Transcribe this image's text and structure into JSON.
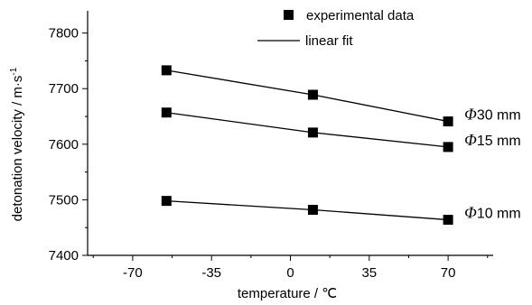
{
  "chart_data": {
    "type": "scatter",
    "xlabel": "temperature / ℃",
    "ylabel": "detonation velocity / m·s",
    "ylabel_superscript": "-1",
    "xlim": [
      -90,
      90
    ],
    "ylim": [
      7400,
      7840
    ],
    "x_ticks": [
      -70,
      -35,
      0,
      35,
      70
    ],
    "x_tick_labels": [
      "-70",
      "-35",
      "0",
      "35",
      "70"
    ],
    "y_ticks": [
      7400,
      7500,
      7600,
      7700,
      7800
    ],
    "y_tick_labels": [
      "7400",
      "7500",
      "7600",
      "7700",
      "7800"
    ],
    "legend": {
      "position": "top-right",
      "entries": [
        {
          "label": "experimental data",
          "marker": "square"
        },
        {
          "label": "linear fit",
          "marker": "line"
        }
      ]
    },
    "series": [
      {
        "name_symbol": "Φ",
        "name": "30 mm",
        "x": [
          -55,
          10,
          70
        ],
        "y": [
          7733,
          7689,
          7641
        ]
      },
      {
        "name_symbol": "Φ",
        "name": "15 mm",
        "x": [
          -55,
          10,
          70
        ],
        "y": [
          7657,
          7621,
          7595
        ]
      },
      {
        "name_symbol": "Φ",
        "name": "10 mm",
        "x": [
          -55,
          10,
          70
        ],
        "y": [
          7498,
          7482,
          7464
        ]
      }
    ],
    "colors": {
      "marker": "#000000",
      "line": "#000000",
      "axis": "#000000"
    }
  }
}
